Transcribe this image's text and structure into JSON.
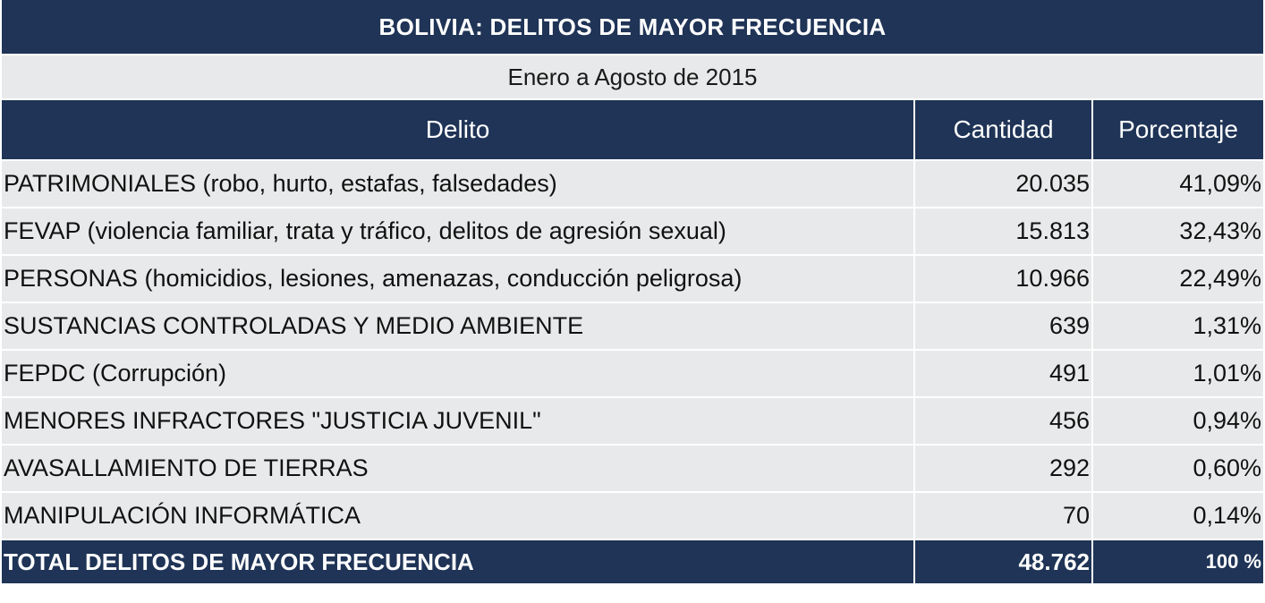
{
  "title": "BOLIVIA: DELITOS DE MAYOR FRECUENCIA",
  "subtitle": "Enero a Agosto de 2015",
  "chart_data": {
    "type": "table",
    "title": "BOLIVIA: DELITOS DE MAYOR FRECUENCIA",
    "subtitle": "Enero a Agosto de 2015",
    "columns": [
      "Delito",
      "Cantidad",
      "Porcentaje"
    ],
    "rows": [
      [
        "PATRIMONIALES (robo, hurto, estafas,  falsedades)",
        "20.035",
        "41,09%"
      ],
      [
        "FEVAP (violencia familiar, trata y tráfico, delitos de agresión sexual)",
        "15.813",
        "32,43%"
      ],
      [
        "PERSONAS (homicidios, lesiones, amenazas, conducción peligrosa)",
        "10.966",
        "22,49%"
      ],
      [
        "SUSTANCIAS CONTROLADAS  Y MEDIO AMBIENTE",
        "639",
        "1,31%"
      ],
      [
        "FEPDC (Corrupción)",
        "491",
        "1,01%"
      ],
      [
        "MENORES INFRACTORES \"JUSTICIA JUVENIL\"",
        "456",
        "0,94%"
      ],
      [
        "AVASALLAMIENTO  DE TIERRAS",
        "292",
        "0,60%"
      ],
      [
        "MANIPULACIÓN INFORMÁTICA",
        "70",
        "0,14%"
      ]
    ],
    "total": [
      "TOTAL DELITOS DE MAYOR FRECUENCIA",
      "48.762",
      "100 %"
    ]
  },
  "colors": {
    "header": "#1f3456",
    "row": "#e8e9ea",
    "separator": "#ffffff"
  }
}
